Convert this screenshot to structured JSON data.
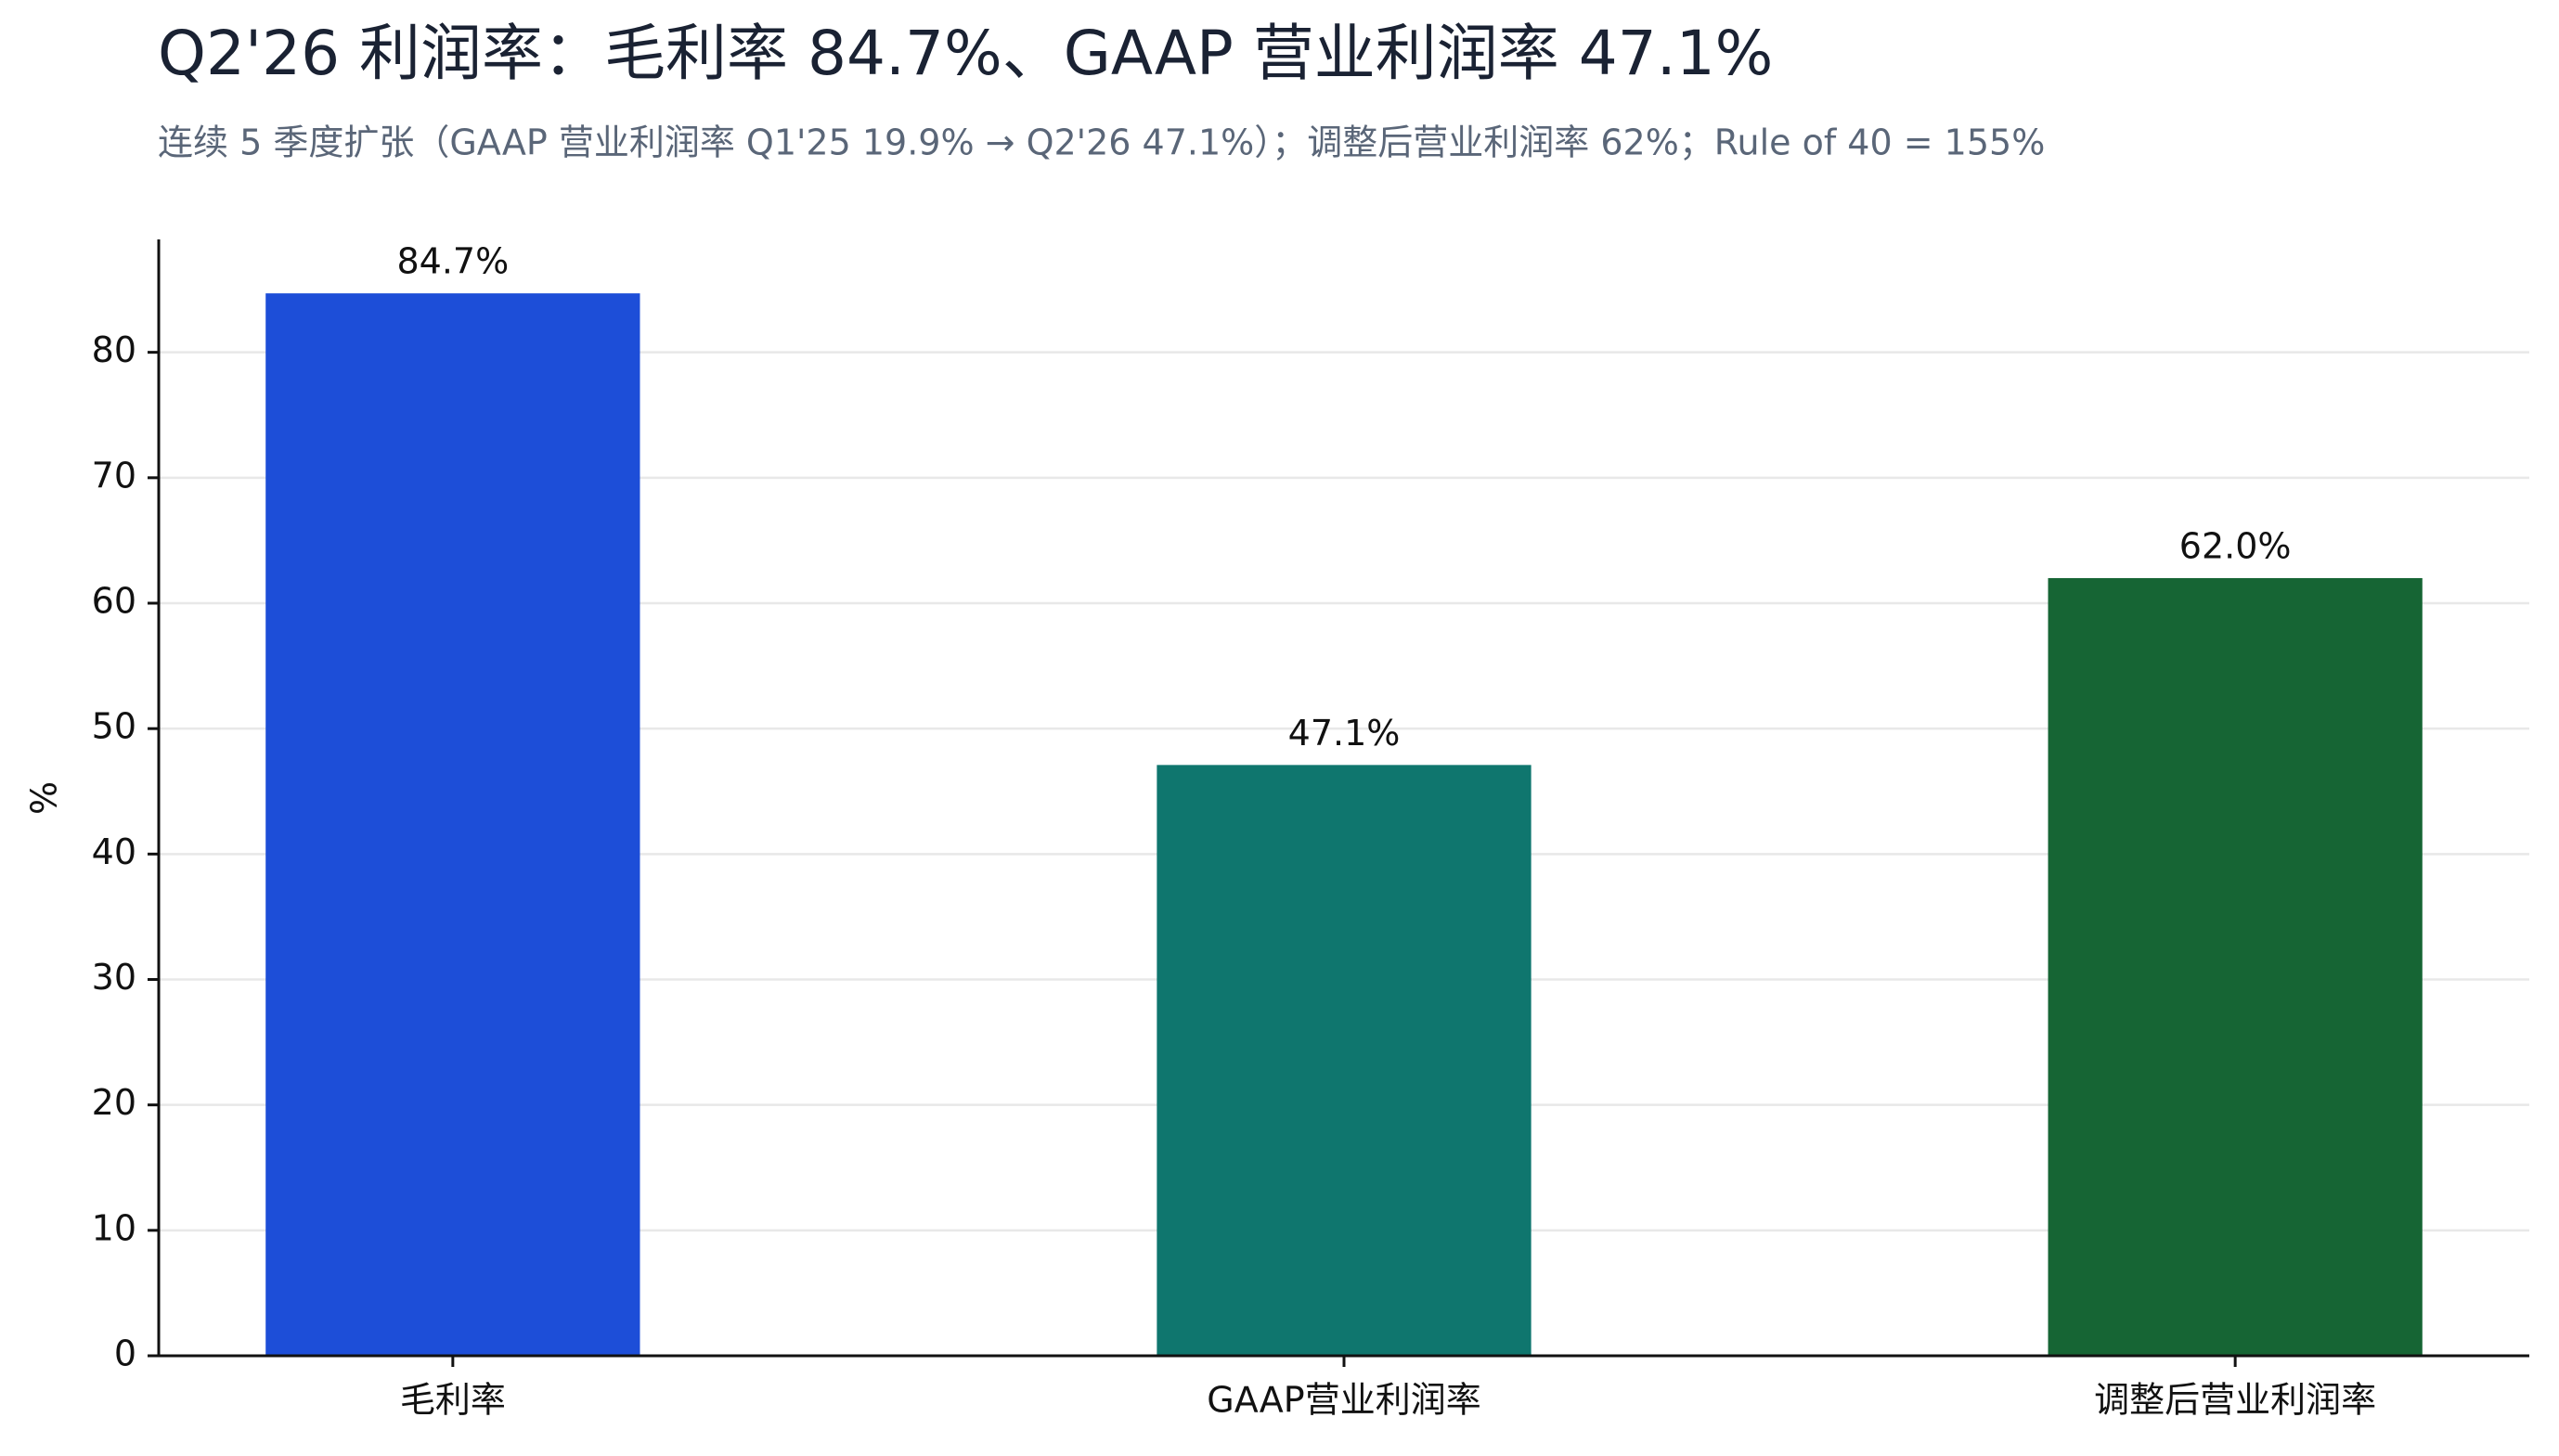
{
  "chart_data": {
    "type": "bar",
    "title": "Q2'26 利润率：毛利率 84.7%、GAAP 营业利润率 47.1%",
    "subtitle": "连续 5 季度扩张（GAAP 营业利润率 Q1'25 19.9% → Q2'26 47.1%）；调整后营业利润率 62%；Rule of 40 = 155%",
    "ylabel": "%",
    "categories": [
      "毛利率",
      "GAAP营业利润率",
      "调整后营业利润率"
    ],
    "values": [
      84.7,
      47.1,
      62.0
    ],
    "value_labels": [
      "84.7%",
      "47.1%",
      "62.0%"
    ],
    "colors": [
      "#1d4ed8",
      "#0f766e",
      "#166534"
    ],
    "ylim": [
      0,
      89
    ],
    "yticks": [
      0,
      10,
      20,
      30,
      40,
      50,
      60,
      70,
      80
    ],
    "grid": true
  }
}
